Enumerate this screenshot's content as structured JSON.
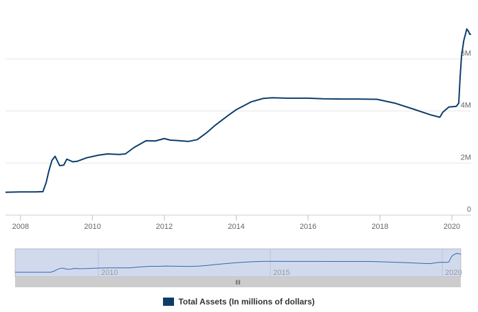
{
  "chart_data": {
    "type": "line",
    "title": "",
    "xlabel": "",
    "ylabel": "",
    "x_ticks": [
      "2008",
      "2010",
      "2012",
      "2014",
      "2016",
      "2018",
      "2020"
    ],
    "y_ticks": [
      "0",
      "2M",
      "4M",
      "6M"
    ],
    "ylim": [
      0,
      8000000
    ],
    "xlim": [
      "2007-08-01",
      "2020-07-15"
    ],
    "grid": true,
    "legend_position": "bottom-center",
    "series": [
      {
        "name": "Total Assets (In millions of dollars)",
        "color": "#0b3d6b",
        "points": [
          [
            "2007-08-01",
            880000
          ],
          [
            "2008-01-01",
            890000
          ],
          [
            "2008-06-01",
            890000
          ],
          [
            "2008-08-15",
            900000
          ],
          [
            "2008-09-17",
            1250000
          ],
          [
            "2008-10-15",
            1700000
          ],
          [
            "2008-11-15",
            2100000
          ],
          [
            "2008-12-17",
            2260000
          ],
          [
            "2009-02-01",
            1900000
          ],
          [
            "2009-03-15",
            1920000
          ],
          [
            "2009-04-15",
            2150000
          ],
          [
            "2009-05-15",
            2100000
          ],
          [
            "2009-06-15",
            2050000
          ],
          [
            "2009-08-01",
            2070000
          ],
          [
            "2009-11-01",
            2200000
          ],
          [
            "2010-03-01",
            2300000
          ],
          [
            "2010-06-01",
            2350000
          ],
          [
            "2010-10-01",
            2330000
          ],
          [
            "2010-12-01",
            2350000
          ],
          [
            "2011-03-01",
            2600000
          ],
          [
            "2011-06-30",
            2860000
          ],
          [
            "2011-10-01",
            2850000
          ],
          [
            "2012-01-01",
            2940000
          ],
          [
            "2012-03-01",
            2880000
          ],
          [
            "2012-06-01",
            2860000
          ],
          [
            "2012-09-01",
            2830000
          ],
          [
            "2012-12-01",
            2900000
          ],
          [
            "2013-03-01",
            3150000
          ],
          [
            "2013-06-01",
            3450000
          ],
          [
            "2013-10-01",
            3800000
          ],
          [
            "2014-01-01",
            4050000
          ],
          [
            "2014-06-01",
            4350000
          ],
          [
            "2014-10-01",
            4480000
          ],
          [
            "2015-01-01",
            4510000
          ],
          [
            "2015-06-01",
            4490000
          ],
          [
            "2016-01-01",
            4490000
          ],
          [
            "2016-06-01",
            4470000
          ],
          [
            "2017-01-01",
            4460000
          ],
          [
            "2017-06-01",
            4460000
          ],
          [
            "2017-12-01",
            4450000
          ],
          [
            "2018-06-01",
            4300000
          ],
          [
            "2018-12-01",
            4080000
          ],
          [
            "2019-06-01",
            3850000
          ],
          [
            "2019-09-01",
            3760000
          ],
          [
            "2019-10-01",
            3950000
          ],
          [
            "2019-12-01",
            4150000
          ],
          [
            "2020-02-15",
            4180000
          ],
          [
            "2020-03-11",
            4300000
          ],
          [
            "2020-03-25",
            5300000
          ],
          [
            "2020-04-08",
            6100000
          ],
          [
            "2020-05-01",
            6700000
          ],
          [
            "2020-06-01",
            7150000
          ],
          [
            "2020-06-20",
            7050000
          ],
          [
            "2020-07-01",
            6950000
          ],
          [
            "2020-07-15",
            6950000
          ]
        ]
      }
    ],
    "navigator": {
      "x_ticks": [
        "2010",
        "2015",
        "2020"
      ],
      "handle_glyph": "III"
    }
  }
}
